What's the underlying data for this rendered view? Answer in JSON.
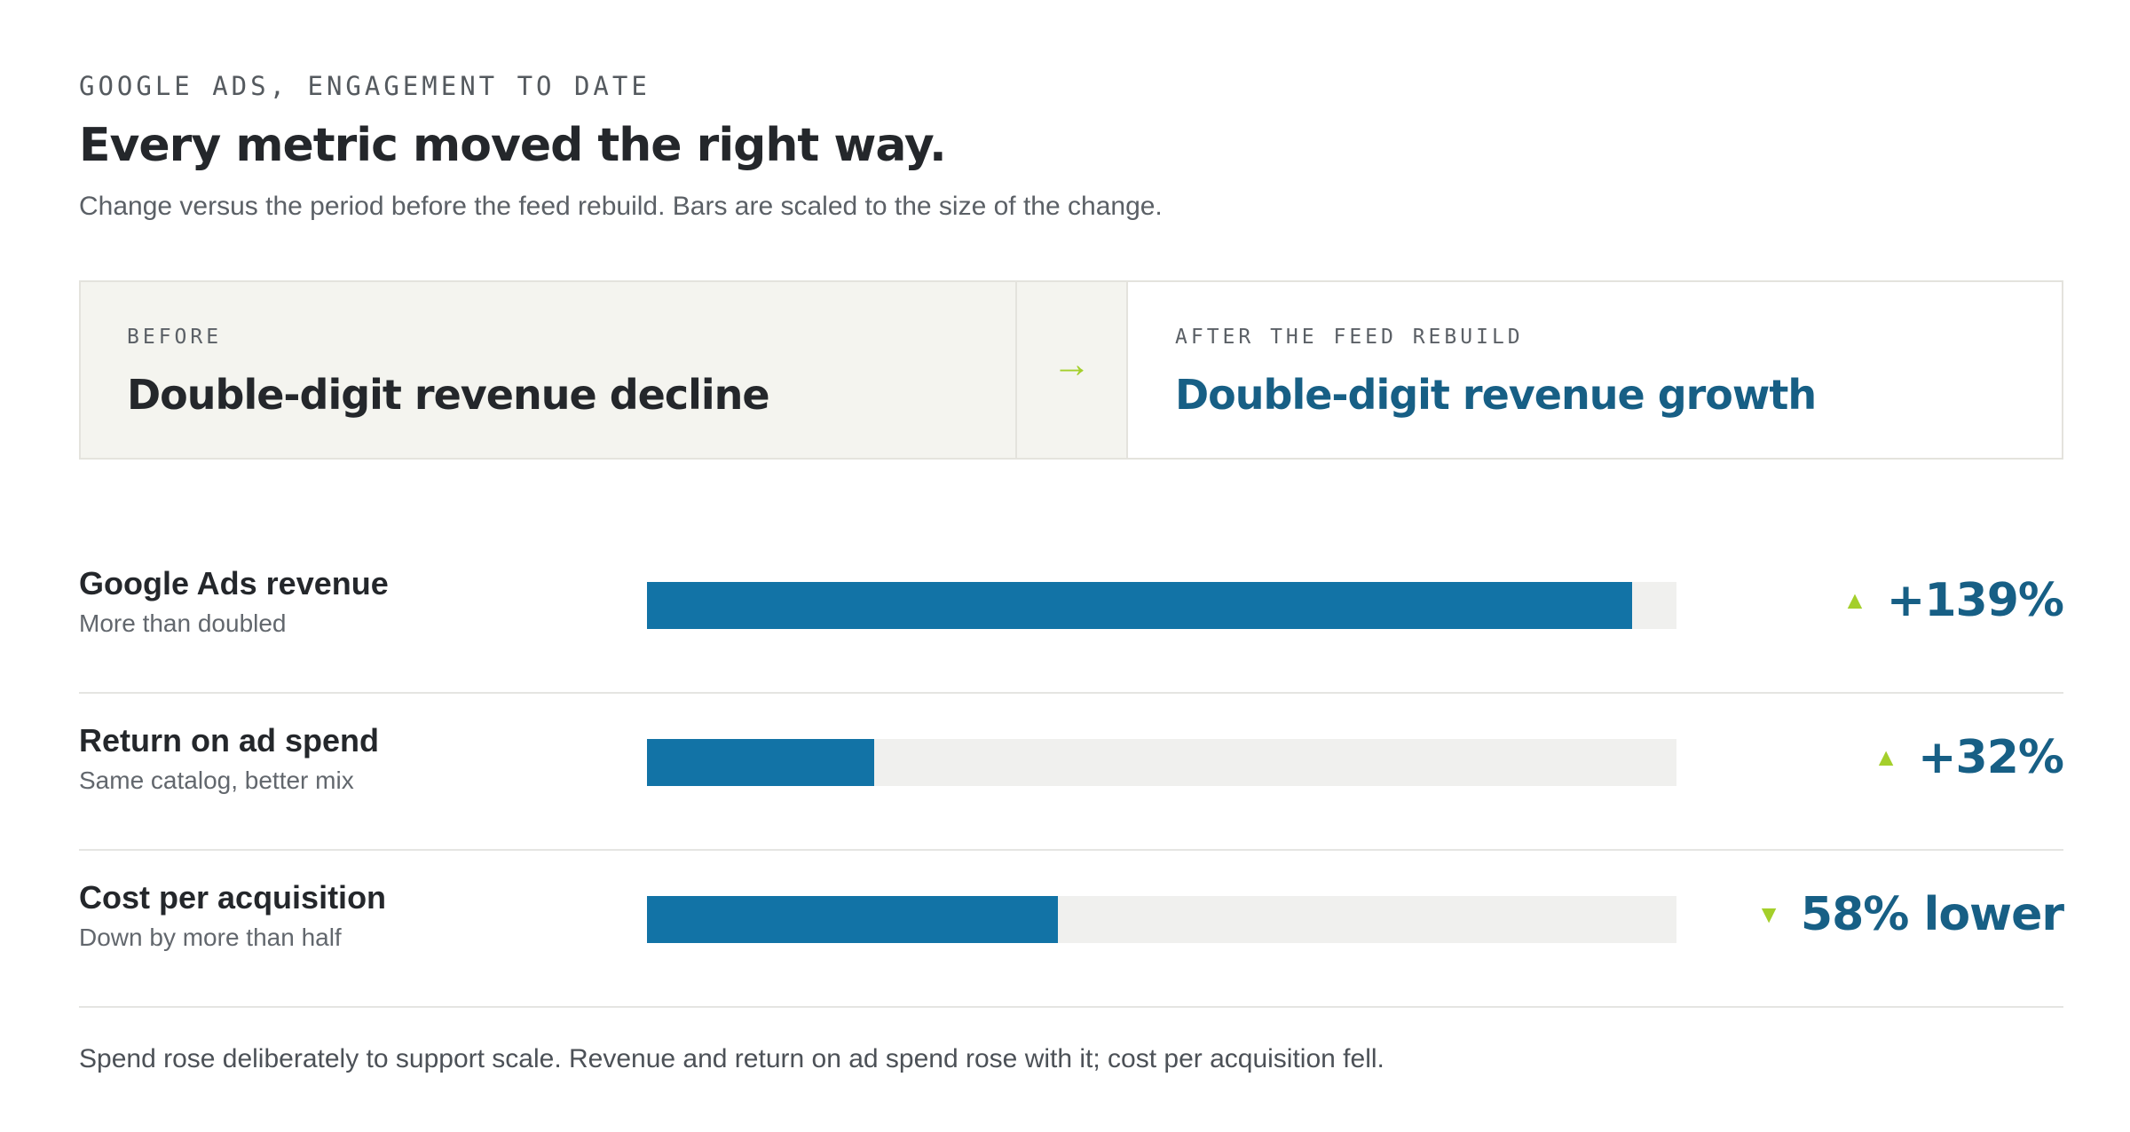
{
  "header": {
    "eyebrow": "GOOGLE ADS, ENGAGEMENT TO DATE",
    "title": "Every metric moved the right way.",
    "subtitle": "Change versus the period before the feed rebuild. Bars are scaled to the size of the change."
  },
  "comparison": {
    "before_label": "BEFORE",
    "before_value": "Double-digit revenue decline",
    "arrow_icon": "→",
    "after_label": "AFTER THE FEED REBUILD",
    "after_value": "Double-digit revenue growth"
  },
  "chart_data": {
    "type": "bar",
    "orientation": "horizontal",
    "unit": "%",
    "scale_max": 139,
    "rows": [
      {
        "label": "Google Ads revenue",
        "note": "More than doubled",
        "value": 139,
        "display": "+139%",
        "direction": "up"
      },
      {
        "label": "Return on ad spend",
        "note": "Same catalog, better mix",
        "value": 32,
        "display": "+32%",
        "direction": "up"
      },
      {
        "label": "Cost per acquisition",
        "note": "Down by more than half",
        "value": 58,
        "display": "58% lower",
        "direction": "down"
      }
    ]
  },
  "colors": {
    "bar": "#1273a6",
    "track": "#f0f0ee",
    "accent_arrow": "#a4cf2b",
    "value_text": "#175f85"
  },
  "footnote": "Spend rose deliberately to support scale. Revenue and return on ad spend rose with it; cost per acquisition fell."
}
